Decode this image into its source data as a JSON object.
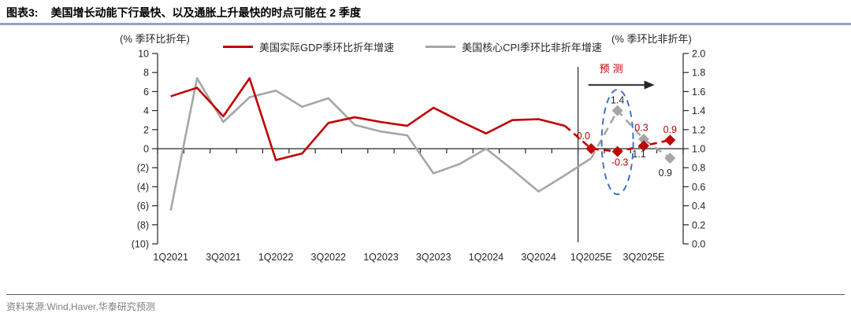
{
  "header": {
    "tag": "图表3:",
    "title": "美国增长动能下行最快、以及通胀上升最快的时点可能在 2 季度"
  },
  "footer": {
    "source": "资料来源:Wind,Haver,华泰研究预测"
  },
  "chart_data": {
    "type": "line",
    "title": "",
    "legend": [
      {
        "label": "美国实际GDP季环比折年增速",
        "color": "#c00000"
      },
      {
        "label": "美国核心CPI季环比非折年增速",
        "color": "#a6a6a6"
      }
    ],
    "left_axis": {
      "unit": "(% 季环比折年)",
      "min": -10,
      "max": 10,
      "tick_labels": [
        "10",
        "8",
        "6",
        "4",
        "2",
        "0",
        "(2)",
        "(4)",
        "(6)",
        "(8)",
        "(10)"
      ]
    },
    "right_axis": {
      "unit": "(% 季环比非折年)",
      "min": 0,
      "max": 2,
      "tick_labels": [
        "2.0",
        "1.8",
        "1.6",
        "1.4",
        "1.2",
        "1.0",
        "0.8",
        "0.6",
        "0.4",
        "0.2",
        "0.0"
      ]
    },
    "x_axis": {
      "n_categories": 20,
      "tick_label_every": 2,
      "tick_labels": [
        "1Q2021",
        "3Q2021",
        "1Q2022",
        "3Q2022",
        "1Q2023",
        "3Q2023",
        "1Q2024",
        "3Q2024",
        "1Q2025E",
        "3Q2025E"
      ]
    },
    "series": [
      {
        "name": "美国核心CPI季环比非折年增速",
        "axis": "right",
        "color": "#a6a6a6",
        "dash": "10 7",
        "actual": [
          0.35,
          1.74,
          1.28,
          1.54,
          1.61,
          1.44,
          1.53,
          1.25,
          1.18,
          1.14,
          0.74,
          0.84,
          1.0,
          0.78,
          0.55,
          0.72,
          0.9
        ],
        "forecast": {
          "start_index": 17,
          "values": [
            1.4,
            1.1,
            0.9
          ],
          "labels": [
            "1.4",
            "1.1",
            "0.9"
          ],
          "label_sides": [
            "above",
            "below-left",
            "below-left"
          ],
          "label_color": "#262626"
        }
      },
      {
        "name": "美国实际GDP季环比折年增速",
        "axis": "left",
        "color": "#c00000",
        "dash": "9 6",
        "actual": [
          5.5,
          6.4,
          3.4,
          7.4,
          -1.2,
          -0.5,
          2.7,
          3.3,
          2.8,
          2.4,
          4.3,
          2.9,
          1.6,
          3.0,
          3.1,
          2.4
        ],
        "forecast": {
          "start_index": 16,
          "values": [
            0.0,
            -0.3,
            0.3,
            0.9
          ],
          "labels": [
            "0.0",
            "-0.3",
            "0.3",
            "0.9"
          ],
          "label_sides": [
            "above-left",
            "below",
            "above-far",
            "above"
          ],
          "label_color": "#c00000"
        }
      }
    ],
    "annotations": {
      "forecast_label": "预测",
      "forecast_label_color": "#c00000",
      "divider_boundary_index": 16,
      "arrow_color": "#404040",
      "ellipse": {
        "center_category": 17.5,
        "center_value_right": 1.07,
        "rx_categories": 0.6,
        "ry_right_units": 0.55,
        "color": "#4472c4"
      }
    }
  }
}
